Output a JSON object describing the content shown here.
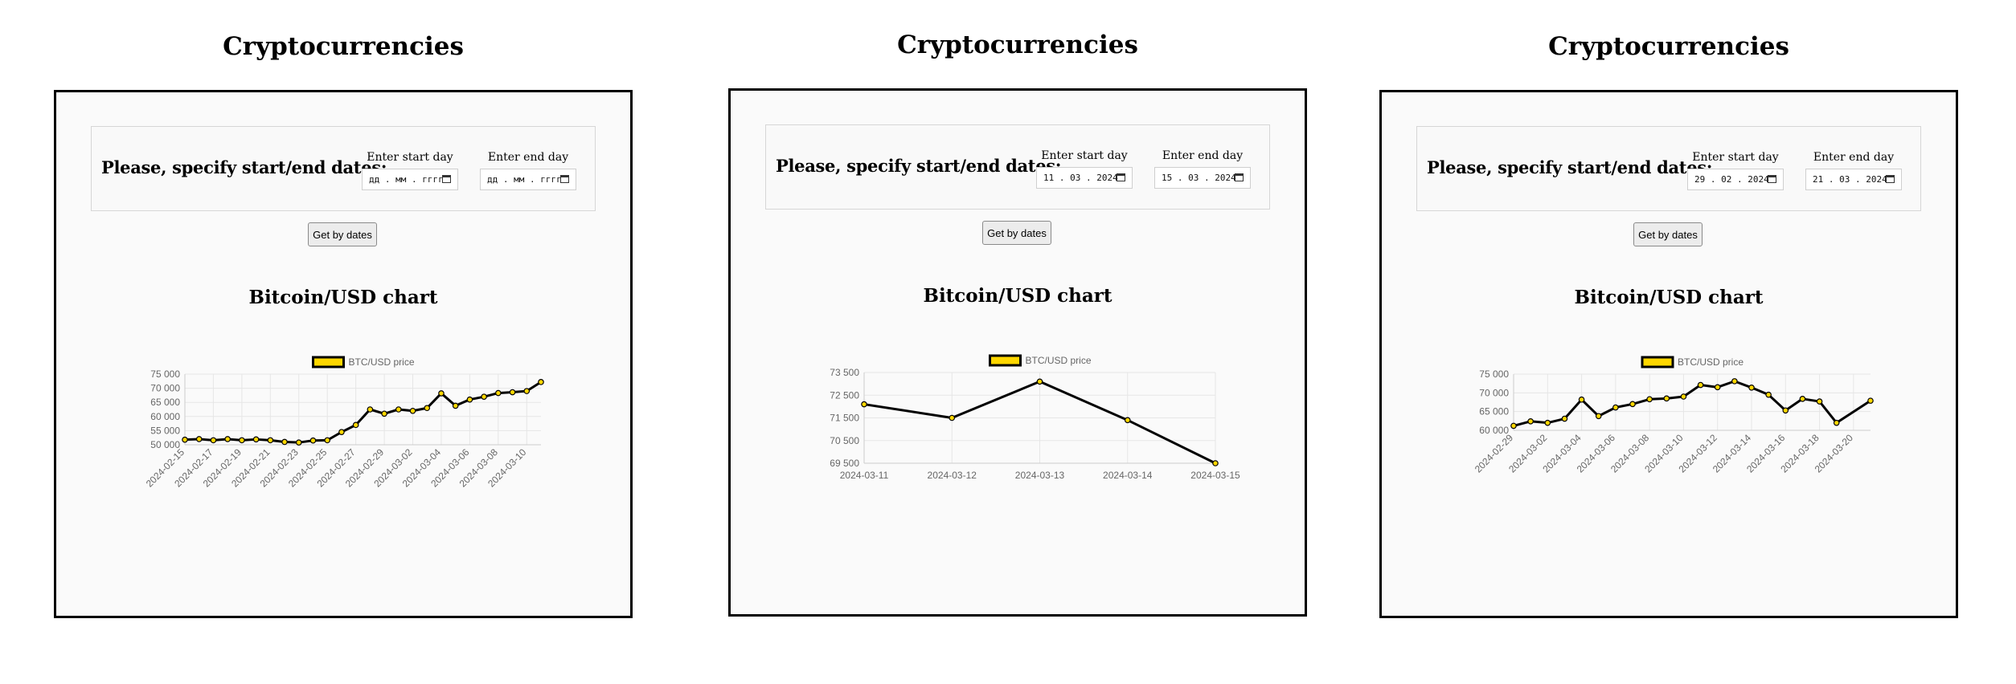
{
  "panels": [
    {
      "page_title": "Cryptocurrencies",
      "form": {
        "prompt": "Please, specify start/end dates:",
        "start_label": "Enter start day",
        "end_label": "Enter end day",
        "start_value": "дд . мм . гггг",
        "end_value": "дд . мм . гггг"
      },
      "button_label": "Get by dates",
      "chart_title": "Bitcoin/USD chart",
      "colors": {
        "line": "#000000",
        "point_fill": "#ffd700",
        "grid": "#e6e6e6"
      },
      "chart_data": {
        "type": "line",
        "title": "Bitcoin/USD chart",
        "legend": {
          "position": "top",
          "label": "BTC/USD price"
        },
        "ylim": [
          50000,
          75000
        ],
        "yticks": [
          50000,
          55000,
          60000,
          65000,
          70000,
          75000
        ],
        "ytick_labels": [
          "50 000",
          "55 000",
          "60 000",
          "65 000",
          "70 000",
          "75 000"
        ],
        "x_label_rotation": "diagonal",
        "grid": true,
        "x_labels_shown": [
          "2024-02-15",
          "2024-02-17",
          "2024-02-19",
          "2024-02-21",
          "2024-02-23",
          "2024-02-25",
          "2024-02-27",
          "2024-02-29",
          "2024-03-02",
          "2024-03-04",
          "2024-03-06",
          "2024-03-08",
          "2024-03-10"
        ],
        "series": [
          {
            "name": "BTC/USD price",
            "x": [
              "2024-02-15",
              "2024-02-16",
              "2024-02-17",
              "2024-02-18",
              "2024-02-19",
              "2024-02-20",
              "2024-02-21",
              "2024-02-22",
              "2024-02-23",
              "2024-02-24",
              "2024-02-25",
              "2024-02-26",
              "2024-02-27",
              "2024-02-28",
              "2024-02-29",
              "2024-03-01",
              "2024-03-02",
              "2024-03-03",
              "2024-03-04",
              "2024-03-05",
              "2024-03-06",
              "2024-03-07",
              "2024-03-08",
              "2024-03-09",
              "2024-03-10",
              "2024-03-11"
            ],
            "values": [
              51800,
              52000,
              51600,
              52000,
              51600,
              51900,
              51600,
              51000,
              50800,
              51500,
              51600,
              54500,
              57000,
              62500,
              61000,
              62500,
              62000,
              63000,
              68200,
              63800,
              66000,
              67000,
              68300,
              68600,
              69000,
              72200
            ]
          }
        ]
      }
    },
    {
      "page_title": "Cryptocurrencies",
      "form": {
        "prompt": "Please, specify start/end dates:",
        "start_label": "Enter start day",
        "end_label": "Enter end day",
        "start_value": "11 . 03 . 2024",
        "end_value": "15 . 03 . 2024"
      },
      "button_label": "Get by dates",
      "chart_title": "Bitcoin/USD chart",
      "colors": {
        "line": "#000000",
        "point_fill": "#ffd700",
        "grid": "#e6e6e6"
      },
      "chart_data": {
        "type": "line",
        "title": "Bitcoin/USD chart",
        "legend": {
          "position": "top",
          "label": "BTC/USD price"
        },
        "ylim": [
          69500,
          73500
        ],
        "yticks": [
          69500,
          70500,
          71500,
          72500,
          73500
        ],
        "ytick_labels": [
          "69 500",
          "70 500",
          "71 500",
          "72 500",
          "73 500"
        ],
        "x_label_rotation": "none",
        "grid": true,
        "x_labels_shown": [
          "2024-03-11",
          "2024-03-12",
          "2024-03-13",
          "2024-03-14",
          "2024-03-15"
        ],
        "series": [
          {
            "name": "BTC/USD price",
            "x": [
              "2024-03-11",
              "2024-03-12",
              "2024-03-13",
              "2024-03-14",
              "2024-03-15"
            ],
            "values": [
              72100,
              71500,
              73100,
              71400,
              69500
            ]
          }
        ]
      }
    },
    {
      "page_title": "Cryptocurrencies",
      "form": {
        "prompt": "Please, specify start/end dates:",
        "start_label": "Enter start day",
        "end_label": "Enter end day",
        "start_value": "29 . 02 . 2024",
        "end_value": "21 . 03 . 2024"
      },
      "button_label": "Get by dates",
      "chart_title": "Bitcoin/USD chart",
      "colors": {
        "line": "#000000",
        "point_fill": "#ffd700",
        "grid": "#e6e6e6"
      },
      "chart_data": {
        "type": "line",
        "title": "Bitcoin/USD chart",
        "legend": {
          "position": "top",
          "label": "BTC/USD price"
        },
        "ylim": [
          60000,
          75000
        ],
        "yticks": [
          60000,
          65000,
          70000,
          75000
        ],
        "ytick_labels": [
          "60 000",
          "65 000",
          "70 000",
          "75 000"
        ],
        "x_label_rotation": "diagonal",
        "grid": true,
        "x_labels_shown": [
          "2024-02-29",
          "2024-03-02",
          "2024-03-04",
          "2024-03-06",
          "2024-03-08",
          "2024-03-10",
          "2024-03-12",
          "2024-03-14",
          "2024-03-16",
          "2024-03-18",
          "2024-03-20"
        ],
        "series": [
          {
            "name": "BTC/USD price",
            "x": [
              "2024-02-29",
              "2024-03-01",
              "2024-03-02",
              "2024-03-03",
              "2024-03-04",
              "2024-03-05",
              "2024-03-06",
              "2024-03-07",
              "2024-03-08",
              "2024-03-09",
              "2024-03-10",
              "2024-03-11",
              "2024-03-12",
              "2024-03-13",
              "2024-03-14",
              "2024-03-15",
              "2024-03-16",
              "2024-03-17",
              "2024-03-18",
              "2024-03-19",
              "2024-03-20",
              "2024-03-21"
            ],
            "values": [
              61200,
              62400,
              62000,
              63100,
              68200,
              63800,
              66100,
              67000,
              68300,
              68500,
              69000,
              72100,
              71500,
              73100,
              71400,
              69500,
              65300,
              68400,
              67700,
              62000,
              null,
              67900
            ]
          }
        ]
      }
    }
  ]
}
